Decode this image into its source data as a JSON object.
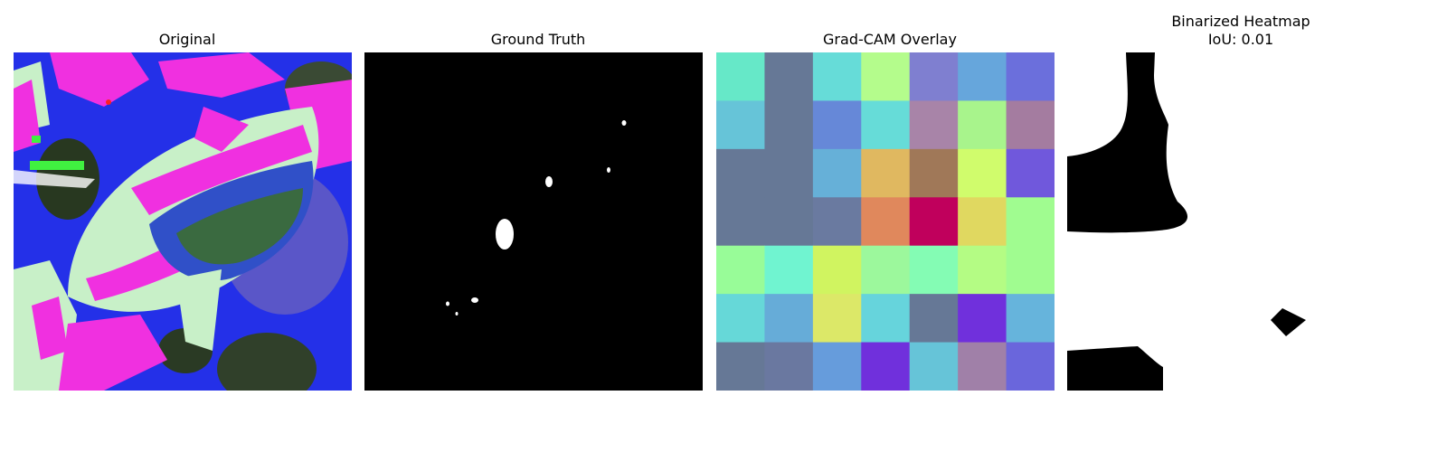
{
  "panels": [
    {
      "title": "Original"
    },
    {
      "title": "Ground Truth"
    },
    {
      "title": "Grad-CAM Overlay"
    },
    {
      "title": "Binarized Heatmap",
      "subtitle": "IoU: 0.01"
    }
  ],
  "gradcam_grid": [
    [
      "#66e8c8",
      "#667896",
      "#66dcd8",
      "#b4fc8c",
      "#7f7fd0",
      "#66a6dc",
      "#6b6fdc"
    ],
    [
      "#66c4d8",
      "#667896",
      "#6688d8",
      "#66dcd8",
      "#a884a8",
      "#a8f48c",
      "#a47ca0"
    ],
    [
      "#667896",
      "#667896",
      "#66b0d8",
      "#e0b860",
      "#a07858",
      "#d0fc6c",
      "#7058dc"
    ],
    [
      "#667896",
      "#667896",
      "#6a7aa0",
      "#e0885c",
      "#c0005c",
      "#e0d860",
      "#a0fc90"
    ],
    [
      "#98fc98",
      "#70f4d0",
      "#d0f460",
      "#9cf89c",
      "#84fcb4",
      "#b4fc84",
      "#a0fc90"
    ],
    [
      "#66d8d8",
      "#66acd8",
      "#dce868",
      "#66d4dc",
      "#667896",
      "#7030dc",
      "#66b4dc"
    ],
    [
      "#667896",
      "#6a78a0",
      "#669cdc",
      "#7030dc",
      "#66c4d8",
      "#a080a8",
      "#6a66dc"
    ]
  ],
  "colors": {
    "blue": "#2030f0",
    "magenta": "#f030e0",
    "mint": "#c8f0c8",
    "dark_green": "#283820",
    "black": "#000000",
    "white": "#ffffff"
  }
}
